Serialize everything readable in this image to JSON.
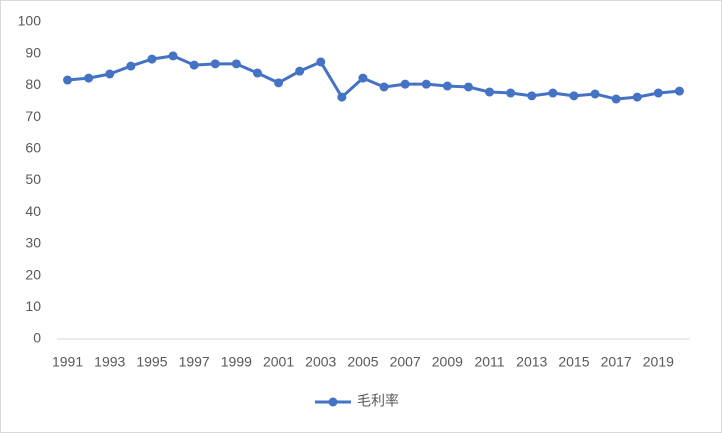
{
  "chart_data": {
    "type": "line",
    "categories": [
      "1991",
      null,
      "1993",
      null,
      "1995",
      null,
      "1997",
      null,
      "1999",
      null,
      "2001",
      null,
      "2003",
      null,
      "2005",
      null,
      "2007",
      null,
      "2009",
      null,
      "2011",
      null,
      "2013",
      null,
      "2015",
      null,
      "2017",
      null,
      "2019",
      null
    ],
    "series": [
      {
        "name": "毛利率",
        "color": "#4472c4",
        "values": [
          81.7,
          82.3,
          83.6,
          86.1,
          88.3,
          89.3,
          86.4,
          86.8,
          86.8,
          83.9,
          80.8,
          84.5,
          87.4,
          76.3,
          82.3,
          79.5,
          80.4,
          80.4,
          79.8,
          79.5,
          77.9,
          77.6,
          76.7,
          77.6,
          76.7,
          77.3,
          75.7,
          76.3,
          77.6,
          78.2
        ]
      }
    ],
    "ylim": [
      0,
      100
    ],
    "yticks": [
      0,
      10,
      20,
      30,
      40,
      50,
      60,
      70,
      80,
      90,
      100
    ],
    "grid": false,
    "legend": "bottom"
  }
}
